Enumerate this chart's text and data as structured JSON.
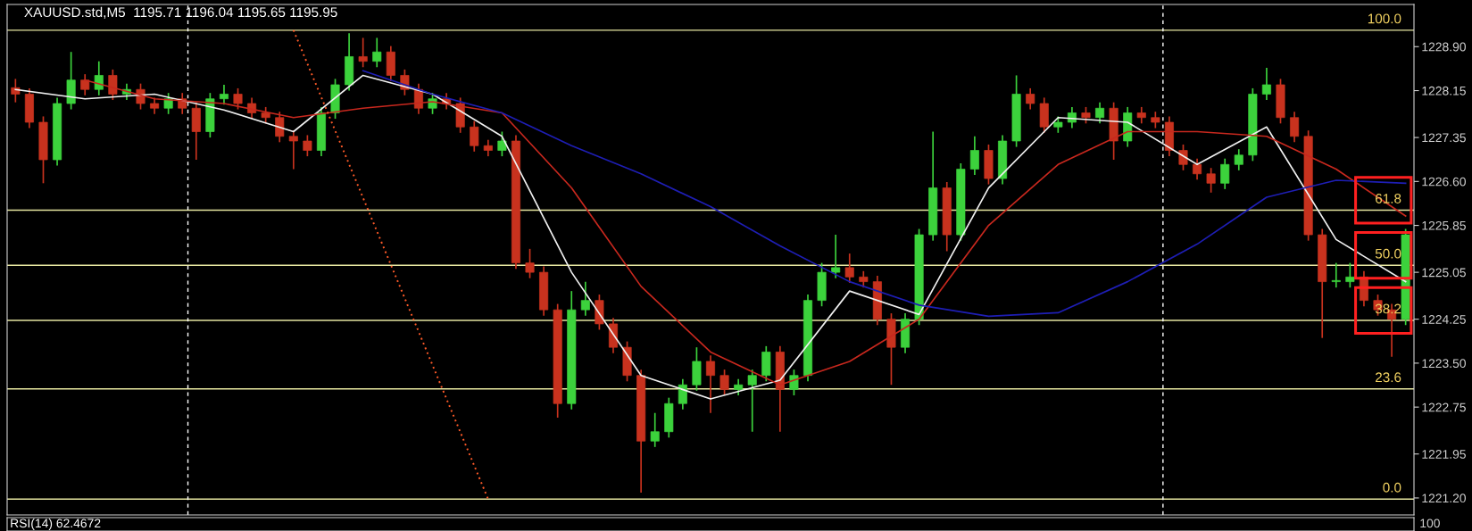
{
  "chart_data": [
    {
      "type": "candlestick",
      "title": "XAUUSD.std,M5  1195.71 1196.04 1195.65 1195.95",
      "annotations": [
        {
          "text": "100.0",
          "y": 1229.18
        },
        {
          "text": "61.8",
          "y": 1226.11
        },
        {
          "text": "50.0",
          "y": 1225.17
        },
        {
          "text": "38.2",
          "y": 1224.23
        },
        {
          "text": "23.6",
          "y": 1223.06
        },
        {
          "text": "0.0",
          "y": 1221.18
        }
      ],
      "categories": [
        null,
        null,
        null,
        null,
        null,
        null,
        null,
        null,
        null,
        null,
        null,
        null,
        null,
        null,
        null,
        null,
        null,
        null,
        null,
        null,
        null,
        null,
        null,
        null,
        null,
        null,
        null,
        null,
        null,
        null,
        null,
        null,
        null,
        null,
        null,
        null,
        null,
        null,
        null,
        null,
        null,
        null,
        null,
        null,
        null,
        null,
        null,
        null,
        null,
        null,
        null,
        null,
        null,
        null,
        null,
        null,
        null,
        null,
        null,
        null,
        null,
        null,
        null,
        null,
        null,
        null,
        null,
        null,
        null,
        null,
        null,
        null,
        null,
        null,
        null,
        null,
        null,
        null,
        null,
        null,
        null,
        null,
        null,
        null,
        null,
        null,
        null,
        null,
        null,
        null,
        null,
        null,
        null,
        null,
        null,
        null,
        null,
        null,
        null,
        null,
        null
      ],
      "colors": [
        "#c8321e",
        "#c8321e",
        "#c8321e",
        "#3cd23c",
        "#3cd23c",
        "#c8321e",
        "#3cd23c",
        "#c8321e",
        "#3cd23c",
        "#c8321e",
        "#c8321e",
        "#3cd23c",
        "#c8321e",
        "#c8321e",
        "#3cd23c",
        "#3cd23c",
        "#c8321e",
        "#c8321e",
        "#c8321e",
        "#c8321e",
        "#c8321e",
        "#c8321e",
        "#3cd23c",
        "#3cd23c",
        "#3cd23c",
        "#c8321e",
        "#3cd23c",
        "#c8321e",
        "#c8321e",
        "#c8321e",
        "#3cd23c",
        "#c8321e",
        "#c8321e",
        "#c8321e",
        "#c8321e",
        "#3cd23c",
        "#c8321e",
        "#c8321e",
        "#c8321e",
        "#c8321e",
        "#3cd23c",
        "#3cd23c",
        "#c8321e",
        "#c8321e",
        "#c8321e",
        "#c8321e",
        "#3cd23c",
        "#3cd23c",
        "#3cd23c",
        "#3cd23c",
        "#c8321e",
        "#c8321e",
        "#3cd23c",
        "#3cd23c",
        "#3cd23c",
        "#c8321e",
        "#3cd23c",
        "#3cd23c",
        "#3cd23c",
        "#3cd23c",
        "#c8321e",
        "#c8321e",
        "#c8321e",
        "#c8321e",
        "#3cd23c",
        "#3cd23c",
        "#3cd23c",
        "#c8321e",
        "#3cd23c",
        "#3cd23c",
        "#c8321e",
        "#3cd23c",
        "#3cd23c",
        "#c8321e",
        "#c8321e",
        "#3cd23c",
        "#3cd23c",
        "#c8321e",
        "#3cd23c",
        "#c8321e",
        "#3cd23c",
        "#c8321e",
        "#c8321e",
        "#c8321e",
        "#c8321e",
        "#c8321e",
        "#c8321e",
        "#3cd23c",
        "#3cd23c",
        "#3cd23c",
        "#3cd23c",
        "#c8321e",
        "#c8321e",
        "#c8321e",
        "#c8321e",
        "#3cd23c",
        "#3cd23c",
        "#c8321e",
        "#c8321e",
        "#c8321e",
        "#3cd23c"
      ],
      "ohlc": [
        [
          1228.2,
          1228.35,
          1227.95,
          1228.09
        ],
        [
          1228.09,
          1228.19,
          1227.51,
          1227.61
        ],
        [
          1227.61,
          1227.71,
          1226.57,
          1226.97
        ],
        [
          1226.97,
          1228.03,
          1226.87,
          1227.93
        ],
        [
          1227.93,
          1228.81,
          1227.83,
          1228.33
        ],
        [
          1228.33,
          1228.43,
          1228.07,
          1228.17
        ],
        [
          1228.17,
          1228.65,
          1228.07,
          1228.41
        ],
        [
          1228.41,
          1228.51,
          1227.99,
          1228.09
        ],
        [
          1228.09,
          1228.27,
          1227.99,
          1228.17
        ],
        [
          1228.17,
          1228.27,
          1227.83,
          1227.93
        ],
        [
          1227.93,
          1228.03,
          1227.75,
          1227.85
        ],
        [
          1227.85,
          1228.11,
          1227.75,
          1228.01
        ],
        [
          1228.01,
          1228.11,
          1227.75,
          1227.85
        ],
        [
          1227.85,
          1227.95,
          1226.97,
          1227.45
        ],
        [
          1227.45,
          1228.11,
          1227.35,
          1228.01
        ],
        [
          1228.01,
          1228.25,
          1227.91,
          1228.09
        ],
        [
          1228.09,
          1228.19,
          1227.83,
          1227.93
        ],
        [
          1227.93,
          1228.03,
          1227.67,
          1227.77
        ],
        [
          1227.77,
          1227.87,
          1227.59,
          1227.69
        ],
        [
          1227.69,
          1227.79,
          1227.27,
          1227.37
        ],
        [
          1227.37,
          1227.47,
          1226.81,
          1227.29
        ],
        [
          1227.29,
          1227.39,
          1227.03,
          1227.13
        ],
        [
          1227.13,
          1227.87,
          1227.03,
          1227.77
        ],
        [
          1227.77,
          1228.35,
          1227.67,
          1228.25
        ],
        [
          1228.25,
          1229.13,
          1228.15,
          1228.73
        ],
        [
          1228.73,
          1229.05,
          1228.55,
          1228.65
        ],
        [
          1228.65,
          1229.05,
          1228.55,
          1228.81
        ],
        [
          1228.81,
          1228.91,
          1228.31,
          1228.41
        ],
        [
          1228.41,
          1228.51,
          1228.07,
          1228.17
        ],
        [
          1228.17,
          1228.27,
          1227.75,
          1227.85
        ],
        [
          1227.85,
          1228.11,
          1227.75,
          1228.01
        ],
        [
          1228.01,
          1228.11,
          1227.83,
          1227.93
        ],
        [
          1227.93,
          1228.03,
          1227.43,
          1227.53
        ],
        [
          1227.53,
          1227.63,
          1227.11,
          1227.21
        ],
        [
          1227.21,
          1227.31,
          1227.03,
          1227.13
        ],
        [
          1227.13,
          1227.45,
          1227.03,
          1227.29
        ],
        [
          1227.29,
          1227.39,
          1225.11,
          1225.21
        ],
        [
          1225.21,
          1225.45,
          1224.95,
          1225.05
        ],
        [
          1225.05,
          1225.15,
          1224.31,
          1224.41
        ],
        [
          1224.41,
          1224.51,
          1222.57,
          1222.81
        ],
        [
          1222.81,
          1224.73,
          1222.71,
          1224.41
        ],
        [
          1224.41,
          1224.89,
          1224.31,
          1224.57
        ],
        [
          1224.57,
          1224.67,
          1224.07,
          1224.17
        ],
        [
          1224.17,
          1224.27,
          1223.67,
          1223.77
        ],
        [
          1223.77,
          1223.87,
          1223.19,
          1223.29
        ],
        [
          1223.29,
          1223.39,
          1221.29,
          1222.17
        ],
        [
          1222.17,
          1222.65,
          1222.07,
          1222.33
        ],
        [
          1222.33,
          1222.91,
          1222.23,
          1222.81
        ],
        [
          1222.81,
          1223.23,
          1222.71,
          1223.13
        ],
        [
          1223.13,
          1223.77,
          1223.03,
          1223.53
        ],
        [
          1223.53,
          1223.63,
          1222.65,
          1223.29
        ],
        [
          1223.29,
          1223.39,
          1222.95,
          1223.05
        ],
        [
          1223.05,
          1223.23,
          1222.95,
          1223.13
        ],
        [
          1223.13,
          1223.39,
          1222.33,
          1223.29
        ],
        [
          1223.29,
          1223.79,
          1223.19,
          1223.69
        ],
        [
          1223.69,
          1223.79,
          1222.33,
          1223.05
        ],
        [
          1223.05,
          1223.39,
          1222.95,
          1223.29
        ],
        [
          1223.29,
          1224.67,
          1223.19,
          1224.57
        ],
        [
          1224.57,
          1225.21,
          1224.47,
          1225.05
        ],
        [
          1225.05,
          1225.69,
          1224.95,
          1225.13
        ],
        [
          1225.13,
          1225.37,
          1224.87,
          1224.97
        ],
        [
          1224.97,
          1225.07,
          1224.79,
          1224.89
        ],
        [
          1224.89,
          1224.99,
          1224.15,
          1224.25
        ],
        [
          1224.25,
          1224.35,
          1223.13,
          1223.77
        ],
        [
          1223.77,
          1224.35,
          1223.67,
          1224.25
        ],
        [
          1224.25,
          1225.79,
          1224.15,
          1225.69
        ],
        [
          1225.69,
          1227.45,
          1225.59,
          1226.49
        ],
        [
          1226.49,
          1226.59,
          1225.41,
          1225.69
        ],
        [
          1225.69,
          1226.91,
          1225.59,
          1226.81
        ],
        [
          1226.81,
          1227.37,
          1226.71,
          1227.13
        ],
        [
          1227.13,
          1227.23,
          1226.55,
          1226.65
        ],
        [
          1226.65,
          1227.39,
          1226.55,
          1227.29
        ],
        [
          1227.29,
          1228.41,
          1227.19,
          1228.09
        ],
        [
          1228.09,
          1228.19,
          1227.83,
          1227.93
        ],
        [
          1227.93,
          1228.03,
          1227.43,
          1227.53
        ],
        [
          1227.53,
          1227.71,
          1227.43,
          1227.61
        ],
        [
          1227.61,
          1227.87,
          1227.51,
          1227.77
        ],
        [
          1227.77,
          1227.87,
          1227.59,
          1227.69
        ],
        [
          1227.69,
          1227.95,
          1227.59,
          1227.85
        ],
        [
          1227.85,
          1227.95,
          1226.97,
          1227.29
        ],
        [
          1227.29,
          1227.87,
          1227.19,
          1227.77
        ],
        [
          1227.77,
          1227.87,
          1227.59,
          1227.69
        ],
        [
          1227.69,
          1227.79,
          1227.51,
          1227.61
        ],
        [
          1227.61,
          1227.71,
          1227.03,
          1227.13
        ],
        [
          1227.13,
          1227.23,
          1226.79,
          1226.89
        ],
        [
          1226.89,
          1226.99,
          1226.63,
          1226.73
        ],
        [
          1226.73,
          1226.83,
          1226.41,
          1226.57
        ],
        [
          1226.57,
          1226.99,
          1226.47,
          1226.89
        ],
        [
          1226.89,
          1227.15,
          1226.79,
          1227.05
        ],
        [
          1227.05,
          1228.19,
          1226.95,
          1228.09
        ],
        [
          1228.09,
          1228.54,
          1227.99,
          1228.25
        ],
        [
          1228.25,
          1228.35,
          1227.59,
          1227.69
        ],
        [
          1227.69,
          1227.79,
          1227.27,
          1227.37
        ],
        [
          1227.37,
          1227.47,
          1225.59,
          1225.69
        ],
        [
          1225.69,
          1225.79,
          1223.93,
          1224.89
        ],
        [
          1224.89,
          1225.21,
          1224.79,
          1224.89
        ],
        [
          1224.89,
          1225.21,
          1224.79,
          1224.97
        ],
        [
          1224.97,
          1225.07,
          1224.47,
          1224.57
        ],
        [
          1224.57,
          1224.67,
          1224.31,
          1224.41
        ],
        [
          1224.41,
          1224.51,
          1223.61,
          1224.25
        ],
        [
          1224.25,
          1225.79,
          1224.15,
          1225.69
        ]
      ],
      "series": [
        {
          "type": "line",
          "color": "#f0f0f0",
          "values": [
            1228.17,
            null,
            null,
            null,
            null,
            1228.01,
            null,
            null,
            null,
            null,
            1228.09,
            null,
            null,
            null,
            null,
            1227.82,
            null,
            null,
            null,
            null,
            1227.45,
            null,
            null,
            null,
            null,
            1228.41,
            null,
            null,
            null,
            null,
            1228.09,
            null,
            null,
            null,
            null,
            1227.37,
            null,
            null,
            null,
            null,
            1225.05,
            null,
            null,
            null,
            null,
            1223.29,
            null,
            null,
            null,
            null,
            1222.89,
            null,
            null,
            null,
            null,
            1223.21,
            null,
            null,
            null,
            null,
            1224.73,
            null,
            null,
            null,
            null,
            1224.33,
            null,
            null,
            null,
            null,
            1226.49,
            null,
            null,
            null,
            null,
            1227.69,
            null,
            null,
            null,
            null,
            1227.61,
            null,
            null,
            null,
            null,
            1226.89,
            null,
            null,
            null,
            null,
            1227.53,
            null,
            null,
            null,
            null,
            1225.61,
            null,
            null,
            null,
            null,
            1224.89
          ]
        },
        {
          "type": "line",
          "color": "#c8281e",
          "values": [
            null,
            null,
            null,
            null,
            null,
            1228.33,
            null,
            null,
            null,
            null,
            1228.01,
            null,
            null,
            null,
            null,
            1227.93,
            null,
            null,
            null,
            null,
            1227.69,
            null,
            null,
            null,
            null,
            1227.85,
            null,
            null,
            null,
            null,
            1227.96,
            null,
            null,
            null,
            null,
            1227.77,
            null,
            null,
            null,
            null,
            1226.49,
            null,
            null,
            null,
            null,
            1224.81,
            null,
            null,
            null,
            null,
            1223.69,
            null,
            null,
            null,
            null,
            1223.13,
            null,
            null,
            null,
            null,
            1223.53,
            null,
            null,
            null,
            null,
            1224.25,
            null,
            null,
            null,
            null,
            1225.85,
            null,
            null,
            null,
            null,
            1226.89,
            null,
            null,
            null,
            null,
            1227.45,
            null,
            null,
            null,
            null,
            1227.45,
            null,
            null,
            null,
            null,
            1227.37,
            null,
            null,
            null,
            null,
            1226.81,
            null,
            null,
            null,
            null,
            1226.01
          ]
        },
        {
          "type": "line",
          "color": "#1e1eb4",
          "values": [
            null,
            null,
            null,
            null,
            null,
            null,
            null,
            null,
            null,
            null,
            null,
            null,
            null,
            null,
            null,
            null,
            null,
            null,
            null,
            null,
            null,
            null,
            null,
            null,
            null,
            1228.49,
            null,
            null,
            null,
            null,
            1228.09,
            null,
            null,
            null,
            null,
            1227.77,
            null,
            null,
            null,
            null,
            1227.21,
            null,
            null,
            null,
            null,
            1226.73,
            null,
            null,
            null,
            null,
            1226.17,
            null,
            null,
            null,
            null,
            1225.5,
            null,
            null,
            null,
            null,
            1224.89,
            null,
            null,
            null,
            null,
            1224.49,
            null,
            null,
            null,
            null,
            1224.3,
            null,
            null,
            null,
            null,
            1224.36,
            null,
            null,
            null,
            null,
            1224.89,
            null,
            null,
            null,
            null,
            1225.53,
            null,
            null,
            null,
            null,
            1226.33,
            null,
            null,
            null,
            null,
            1226.62,
            null,
            null,
            null,
            null,
            1226.57
          ]
        },
        {
          "type": "line",
          "color": "#ff5a28",
          "line_style": "dotted",
          "values": [
            null,
            null,
            null,
            null,
            null,
            null,
            null,
            null,
            null,
            null,
            null,
            null,
            null,
            null,
            null,
            null,
            null,
            null,
            null,
            null,
            1229.18,
            null,
            null,
            null,
            null,
            null,
            null,
            null,
            null,
            null,
            null,
            null,
            null,
            null,
            1221.18,
            null,
            null,
            null,
            null,
            null,
            null,
            null,
            null,
            null,
            null,
            null,
            null,
            null,
            null,
            null,
            null,
            null,
            null,
            null,
            null,
            null,
            null,
            null,
            null,
            null,
            null,
            null,
            null,
            null,
            null,
            null,
            null,
            null,
            null,
            null,
            null,
            null,
            null,
            null,
            null,
            null,
            null,
            null,
            null,
            null,
            null,
            null,
            null,
            null,
            null,
            null,
            null,
            null,
            null,
            null,
            null,
            null,
            null,
            null,
            null,
            null,
            null,
            null,
            null,
            null,
            null
          ]
        }
      ],
      "ref_lines": [
        {
          "axis": "y",
          "value": 1229.18,
          "color": "#e6e6a0"
        },
        {
          "axis": "y",
          "value": 1226.11,
          "color": "#e6e6a0"
        },
        {
          "axis": "y",
          "value": 1225.17,
          "color": "#e6e6a0"
        },
        {
          "axis": "y",
          "value": 1224.23,
          "color": "#e6e6a0"
        },
        {
          "axis": "y",
          "value": 1223.06,
          "color": "#e6e6a0"
        },
        {
          "axis": "y",
          "value": 1221.18,
          "color": "#e6e6a0"
        }
      ],
      "ylim": [
        1220.91,
        1229.62
      ],
      "yticks": [
        {
          "value": 1221.2,
          "label": "1221.20"
        },
        {
          "value": 1221.95,
          "label": "1221.95"
        },
        {
          "value": 1222.75,
          "label": "1222.75"
        },
        {
          "value": 1223.5,
          "label": "1223.50"
        },
        {
          "value": 1224.25,
          "label": "1224.25"
        },
        {
          "value": 1225.05,
          "label": "1225.05"
        },
        {
          "value": 1225.85,
          "label": "1225.85"
        },
        {
          "value": 1226.6,
          "label": "1226.60"
        },
        {
          "value": 1227.35,
          "label": "1227.35"
        },
        {
          "value": 1228.15,
          "label": "1228.15"
        },
        {
          "value": 1228.9,
          "label": "1228.90"
        }
      ],
      "tick_labels": "y"
    },
    {
      "type": "other",
      "title": "RSI(14) 62.4672",
      "annotations": [
        "100"
      ]
    }
  ]
}
